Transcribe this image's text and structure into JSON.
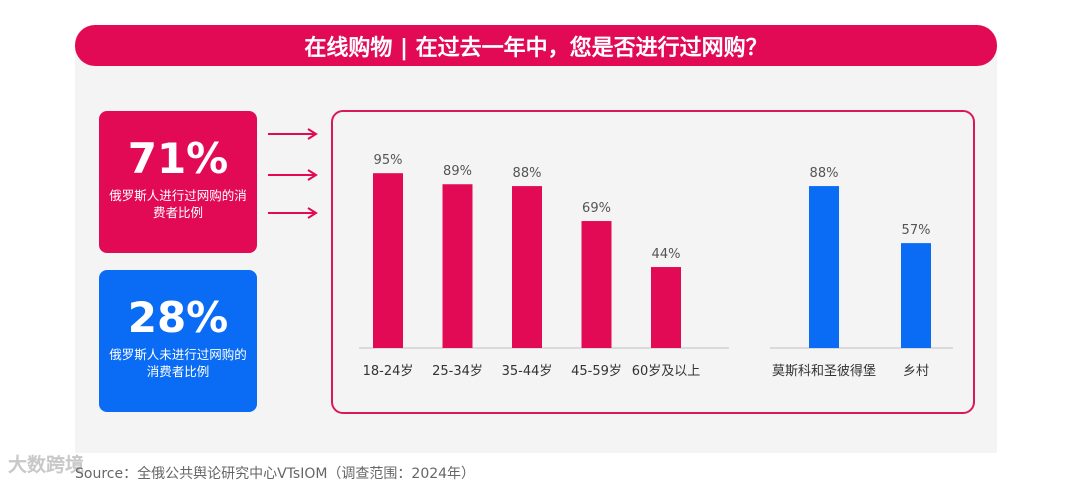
{
  "title": "在线购物 | 在过去一年中，您是否进行过网购？",
  "stat_online": {
    "value": "71%",
    "label": "俄罗斯人进行过网购的消费者比例"
  },
  "stat_offline": {
    "value": "28%",
    "label": "俄罗斯人未进行过网购的消费者比例"
  },
  "source": "Source：全俄公共舆论研究中心VTsIOM（调查范围：2024年）",
  "watermark": "大数跨境",
  "colors": {
    "brand_red": "#e20a55",
    "brand_blue": "#0a6cf5"
  },
  "chart_data": [
    {
      "type": "bar",
      "categories": [
        "18-24岁",
        "25-34岁",
        "35-44岁",
        "45-59岁",
        "60岁及以上"
      ],
      "values": [
        95,
        89,
        88,
        69,
        44
      ],
      "value_labels": [
        "95%",
        "89%",
        "88%",
        "69%",
        "44%"
      ],
      "color": "#e20a55",
      "ylim": [
        0,
        100
      ]
    },
    {
      "type": "bar",
      "categories": [
        "莫斯科和圣彼得堡",
        "乡村"
      ],
      "values": [
        88,
        57
      ],
      "value_labels": [
        "88%",
        "57%"
      ],
      "color": "#0a6cf5",
      "ylim": [
        0,
        100
      ]
    }
  ]
}
